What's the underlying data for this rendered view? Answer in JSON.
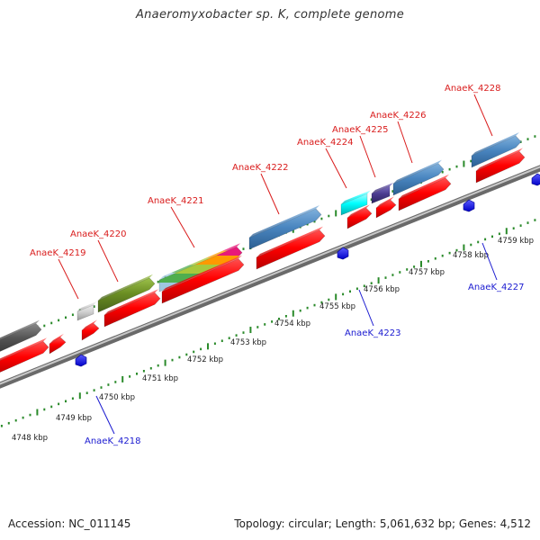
{
  "title": "Anaeromyxobacter sp. K, complete genome",
  "footer": {
    "accession": "Accession: NC_011145",
    "summary": "Topology: circular; Length: 5,061,632 bp; Genes: 4,512"
  },
  "colors": {
    "forward_label": "#d91c1c",
    "reverse_label": "#1a1ad0",
    "cds_red": "#ff0000",
    "cog_blue": "#4a86c0",
    "cog_olive": "#6b8e23",
    "cog_grey": "#555555",
    "cog_lightgrey": "#cccccc",
    "cog_cyan": "#00ffff",
    "cog_purple": "#4b3b8f",
    "reverse_gene": "#1a1aee",
    "tick_dots": "#2a8a2a",
    "backbone": "#8c8c8c"
  },
  "scale_labels": [
    "4748 kbp",
    "4749 kbp",
    "4750 kbp",
    "4751 kbp",
    "4752 kbp",
    "4753 kbp",
    "4754 kbp",
    "4755 kbp",
    "4756 kbp",
    "4757 kbp",
    "4758 kbp",
    "4759 kbp"
  ],
  "forward_genes": [
    "AnaeK_4219",
    "AnaeK_4220",
    "AnaeK_4221",
    "AnaeK_4222",
    "AnaeK_4224",
    "AnaeK_4225",
    "AnaeK_4226",
    "AnaeK_4228"
  ],
  "reverse_genes": [
    "AnaeK_4218",
    "AnaeK_4223",
    "AnaeK_4227"
  ]
}
